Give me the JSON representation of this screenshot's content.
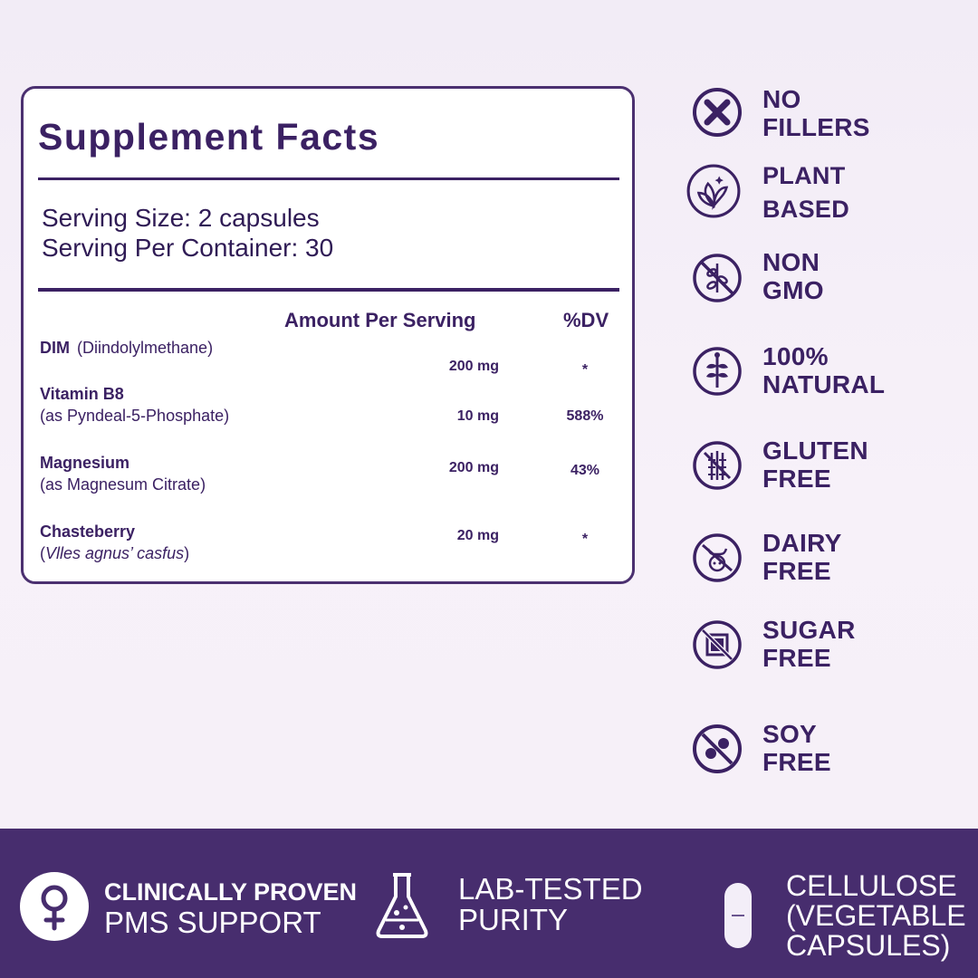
{
  "facts": {
    "title": "Supplement Facts",
    "serving_size": "Serving Size: 2 capsules",
    "servings_per_container": "Serving Per Container: 30",
    "col_amount": "Amount Per Serving",
    "col_dv": "%DV",
    "rows": [
      {
        "name": "DIM",
        "sub": "(Diindolylmethane)",
        "amount": "200 mg",
        "dv": "*"
      },
      {
        "name": "Vitamin B8",
        "sub": "(as Pyndeal-5-Phosphate)",
        "amount": "10 mg",
        "dv": "588%"
      },
      {
        "name": "Magnesium",
        "sub": "(as Magnesum Citrate)",
        "amount": "200 mg",
        "dv": "43%"
      },
      {
        "name": "Chasteberry",
        "sub_open": "(",
        "sub_italic": "Vlles agnus’ casfus",
        "sub_close": ")",
        "amount": "20 mg",
        "dv": "*"
      }
    ]
  },
  "badges": [
    {
      "icon": "no-fillers-icon",
      "line1": "NO",
      "line2": "FILLERS"
    },
    {
      "icon": "plant-leaf-icon",
      "line1": "PLANT",
      "line2": "BASED"
    },
    {
      "icon": "non-gmo-icon",
      "line1": "NON",
      "line2": "GMO"
    },
    {
      "icon": "natural-plant-icon",
      "line1": "100%",
      "line2": "NATURAL"
    },
    {
      "icon": "gluten-free-icon",
      "line1": "GLUTEN",
      "line2": "FREE"
    },
    {
      "icon": "dairy-free-icon",
      "line1": "DAIRY",
      "line2": "FREE"
    },
    {
      "icon": "sugar-free-icon",
      "line1": "SUGAR",
      "line2": "FREE"
    },
    {
      "icon": "soy-free-icon",
      "line1": "SOY",
      "line2": "FREE"
    }
  ],
  "features": [
    {
      "icon": "female-symbol-icon",
      "line1": "CLINICALLY PROVEN",
      "line2": "PMS SUPPORT"
    },
    {
      "icon": "flask-icon",
      "line1": "LAB-TESTED",
      "line2": "PURITY"
    },
    {
      "icon": "capsule-icon",
      "line1": "CELLULOSE",
      "line2": "(VEGETABLE",
      "line3": "CAPSULES)"
    }
  ],
  "colors": {
    "brand": "#472d6e",
    "text": "#3b2163",
    "background": "#f5eff8"
  }
}
